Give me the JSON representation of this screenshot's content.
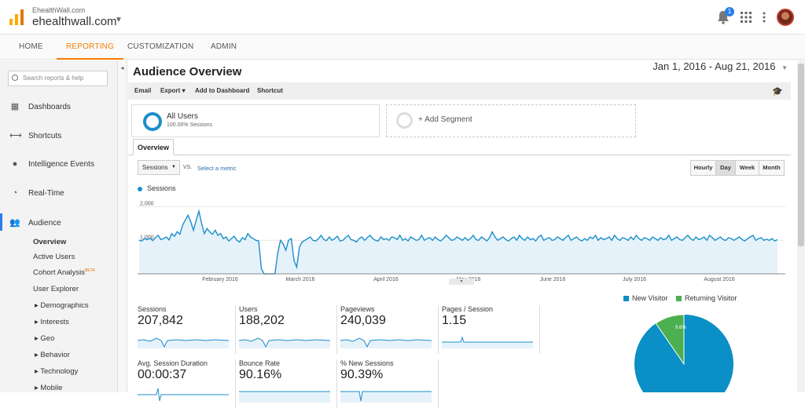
{
  "account": {
    "property_small": "EhealthWall.com",
    "property_name": "ehealthwall.com"
  },
  "notifications": {
    "count": "1"
  },
  "nav": {
    "tabs": [
      "HOME",
      "REPORTING",
      "CUSTOMIZATION",
      "ADMIN"
    ],
    "active": "REPORTING"
  },
  "sidebar": {
    "search_placeholder": "Search reports & help",
    "items": [
      {
        "label": "Dashboards",
        "icon": "grid-icon"
      },
      {
        "label": "Shortcuts",
        "icon": "shortcut-arrow-icon"
      },
      {
        "label": "Intelligence Events",
        "icon": "lightbulb-icon"
      },
      {
        "label": "Real-Time",
        "icon": "clock-icon"
      },
      {
        "label": "Audience",
        "icon": "people-icon"
      }
    ],
    "audience_sub": [
      "Overview",
      "Active Users",
      "Cohort Analysis",
      "User Explorer",
      "Demographics",
      "Interests",
      "Geo",
      "Behavior",
      "Technology",
      "Mobile"
    ],
    "beta_label": "BETA"
  },
  "main": {
    "title": "Audience Overview",
    "date_start": "Jan 1, 2016",
    "date_sep": " - ",
    "date_end": "Aug 21, 2016",
    "toolbar": [
      "Email",
      "Export",
      "Add to Dashboard",
      "Shortcut"
    ],
    "segment": {
      "title": "All Users",
      "subtitle": "100.00% Sessions",
      "add_label": "+ Add Segment"
    },
    "tab": "Overview",
    "metric": "Sessions",
    "vs": "VS.",
    "select_metric": "Select a metric",
    "time_buttons": [
      "Hourly",
      "Day",
      "Week",
      "Month"
    ],
    "active_time": "Day",
    "legend": "Sessions"
  },
  "chart_data": {
    "type": "line",
    "series": [
      {
        "name": "Sessions",
        "values": [
          1000,
          980,
          1050,
          1020,
          1060,
          990,
          1080,
          1150,
          1020,
          1050,
          1100,
          1010,
          1200,
          1120,
          1260,
          1180,
          1450,
          1600,
          1750,
          1550,
          1300,
          1600,
          1870,
          1500,
          1200,
          1350,
          1250,
          1180,
          1300,
          1150,
          1200,
          1050,
          1100,
          980,
          1050,
          1120,
          1000,
          950,
          1080,
          1020,
          1200,
          1100,
          1050,
          1000,
          980,
          150,
          0,
          0,
          0,
          0,
          0,
          600,
          1000,
          900,
          700,
          1000,
          1050,
          400,
          200,
          800,
          950,
          1000,
          1050,
          1100,
          1000,
          980,
          1050,
          1150,
          1020,
          990,
          1100,
          1000,
          1050,
          1120,
          980,
          1000,
          1080,
          1150,
          1020,
          1000,
          950,
          1050,
          1100,
          1000,
          1080,
          1150,
          1050,
          1000,
          980,
          1100,
          1020,
          1050,
          1000,
          1100,
          1080,
          1020,
          1150,
          1000,
          1050,
          980,
          1100,
          1050,
          1000,
          1020,
          1150,
          1000,
          1050,
          1080,
          1000,
          1100,
          1020,
          980,
          1050,
          1150,
          1080,
          1000,
          1020,
          1100,
          1050,
          1000,
          1080,
          1000,
          1050,
          1150,
          1020,
          1000,
          1100,
          1050,
          980,
          1080,
          1250,
          1100,
          1000,
          1050,
          1100,
          1020,
          980,
          1050,
          1100,
          1000,
          1150,
          1050,
          1000,
          1100,
          1020,
          1050,
          980,
          1100,
          1150,
          1000,
          1050,
          1080,
          1000,
          1020,
          1100,
          1050,
          1000,
          1080,
          1150,
          1000,
          1050,
          1100,
          1020,
          980,
          1050,
          1000,
          1100,
          1050,
          1150,
          1000,
          1080,
          1020,
          1050,
          1100,
          1000,
          1150,
          1050,
          1000,
          1080,
          1050,
          1000,
          1100,
          1020,
          1150,
          1050,
          1000,
          1080,
          1050,
          1000,
          1100,
          1050,
          1000,
          1080,
          1020,
          1050,
          1150,
          1000,
          1050,
          1100,
          1020,
          1000,
          1080,
          1150,
          1050,
          1000,
          1100,
          1020,
          1050,
          1100,
          1000,
          1150,
          1080,
          1000,
          1050,
          1100,
          1020,
          1000,
          1080,
          1050,
          1000,
          1050,
          1100,
          1020,
          980,
          1050,
          1100,
          1150,
          1000,
          1050,
          1080,
          1000,
          1030,
          1000,
          1050,
          980,
          1020
        ]
      }
    ],
    "x_labels": [
      "February 2016",
      "March 2016",
      "April 2016",
      "May 2016",
      "June 2016",
      "July 2016",
      "August 2016"
    ],
    "y_ticks": [
      "2,000",
      "1,000"
    ],
    "ylim": [
      0,
      2200
    ],
    "colors": {
      "line": "#1c8ecb",
      "fill": "#e6f2fa"
    }
  },
  "kpis": [
    {
      "label": "Sessions",
      "value": "207,842"
    },
    {
      "label": "Users",
      "value": "188,202"
    },
    {
      "label": "Pageviews",
      "value": "240,039"
    },
    {
      "label": "Pages / Session",
      "value": "1.15"
    },
    {
      "label": "Avg. Session Duration",
      "value": "00:00:37"
    },
    {
      "label": "Bounce Rate",
      "value": "90.16%"
    },
    {
      "label": "% New Sessions",
      "value": "90.39%"
    }
  ],
  "pie": {
    "legend": [
      {
        "label": "New Visitor",
        "color": "#0a8fc6"
      },
      {
        "label": "Returning Visitor",
        "color": "#4caf50"
      }
    ],
    "returning_label": "9.6%",
    "returning_fraction": 0.096
  }
}
